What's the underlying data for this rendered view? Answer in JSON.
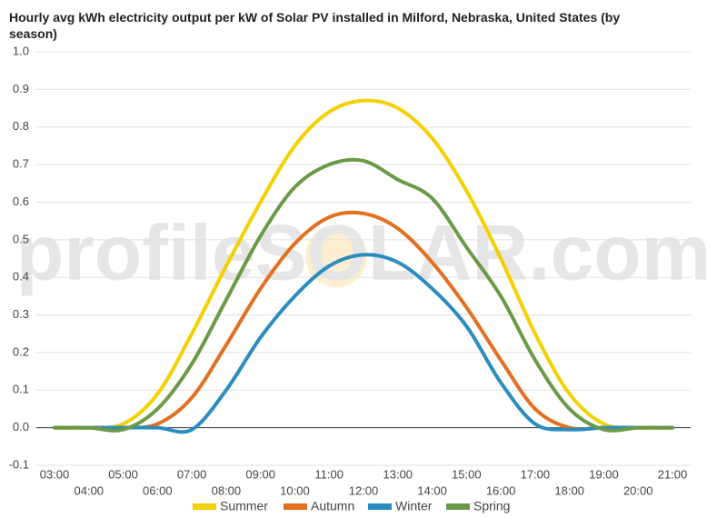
{
  "chart_data": {
    "type": "line",
    "title": "Hourly avg kWh electricity output per kW of Solar PV installed in Milford, Nebraska, United States (by season)",
    "watermark": "profileSOLAR.com",
    "categories": [
      "03:00",
      "04:00",
      "05:00",
      "06:00",
      "07:00",
      "08:00",
      "09:00",
      "10:00",
      "11:00",
      "12:00",
      "13:00",
      "14:00",
      "15:00",
      "16:00",
      "17:00",
      "18:00",
      "19:00",
      "20:00",
      "21:00"
    ],
    "series": [
      {
        "name": "Summer",
        "color": "#f5d000",
        "values": [
          0,
          0,
          0.01,
          0.09,
          0.25,
          0.43,
          0.6,
          0.75,
          0.84,
          0.87,
          0.85,
          0.77,
          0.63,
          0.45,
          0.25,
          0.09,
          0.01,
          0,
          0
        ]
      },
      {
        "name": "Autumn",
        "color": "#e2701f",
        "values": [
          0,
          0,
          0,
          0.01,
          0.08,
          0.22,
          0.37,
          0.49,
          0.56,
          0.57,
          0.53,
          0.44,
          0.32,
          0.18,
          0.05,
          0,
          0,
          0,
          0
        ]
      },
      {
        "name": "Winter",
        "color": "#2a8cbf",
        "values": [
          0,
          0,
          0,
          0,
          -0.005,
          0.1,
          0.24,
          0.35,
          0.43,
          0.46,
          0.44,
          0.37,
          0.27,
          0.12,
          0.01,
          -0.005,
          0,
          0,
          0
        ]
      },
      {
        "name": "Spring",
        "color": "#6a9a48",
        "values": [
          0,
          0,
          -0.005,
          0.05,
          0.17,
          0.34,
          0.51,
          0.64,
          0.7,
          0.71,
          0.66,
          0.61,
          0.48,
          0.35,
          0.18,
          0.05,
          -0.005,
          0,
          0
        ]
      }
    ],
    "ylim": [
      -0.1,
      1
    ],
    "yticks": [
      -0.1,
      {
        "value": 0,
        "label": "0.0"
      },
      0.1,
      0.2,
      0.3,
      0.4,
      0.5,
      0.6,
      0.7,
      0.8,
      0.9,
      {
        "value": 1,
        "label": "1.0"
      }
    ],
    "grid": true,
    "legend": "bottom"
  }
}
